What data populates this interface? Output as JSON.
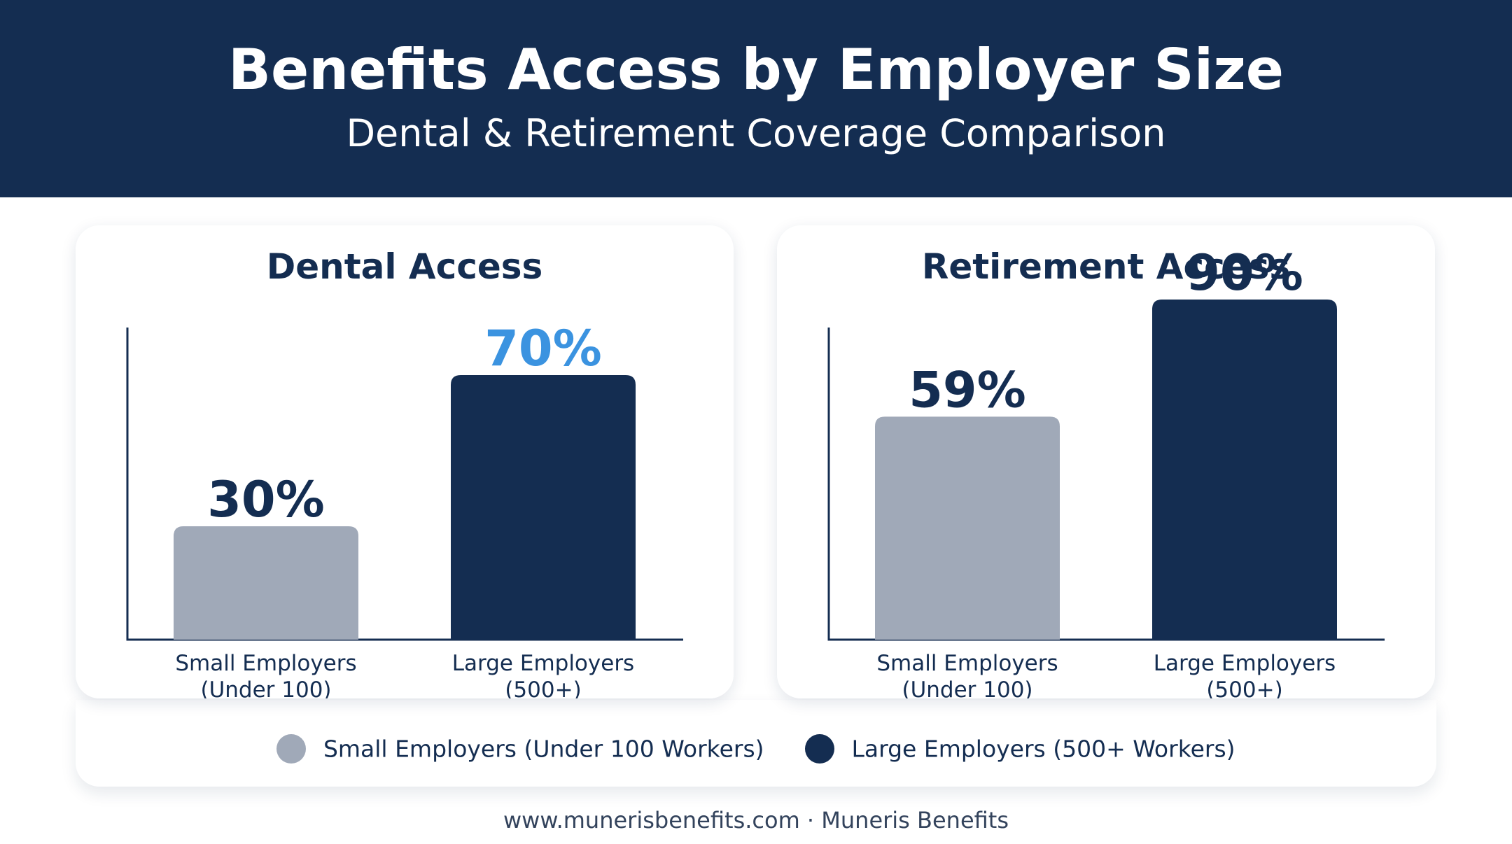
{
  "header": {
    "title": "Benefits Access by Employer Size",
    "subtitle": "Dental & Retirement Coverage Comparison"
  },
  "colors": {
    "header_bg": "#142d51",
    "small": "#a0a9b8",
    "large": "#142d51",
    "highlight_label": "#3b93e0",
    "axis": "#142d51"
  },
  "chart_data": [
    {
      "type": "bar",
      "title": "Dental Access",
      "categories": [
        "Small Employers (Under 100)",
        "Large Employers (500+)"
      ],
      "category_lines": [
        [
          "Small Employers",
          "(Under 100)"
        ],
        [
          "Large Employers",
          "(500+)"
        ]
      ],
      "values": [
        30,
        70
      ],
      "data_labels": [
        "30%",
        "70%"
      ],
      "label_colors": [
        "#142d51",
        "#3b93e0"
      ],
      "bar_colors": [
        "#a0a9b8",
        "#142d51"
      ],
      "ylim": [
        0,
        100
      ],
      "grid": false
    },
    {
      "type": "bar",
      "title": "Retirement Access",
      "categories": [
        "Small Employers (Under 100)",
        "Large Employers (500+)"
      ],
      "category_lines": [
        [
          "Small Employers",
          "(Under 100)"
        ],
        [
          "Large Employers",
          "(500+)"
        ]
      ],
      "values": [
        59,
        90
      ],
      "data_labels": [
        "59%",
        "90%"
      ],
      "label_colors": [
        "#142d51",
        "#142d51"
      ],
      "bar_colors": [
        "#a0a9b8",
        "#142d51"
      ],
      "ylim": [
        0,
        100
      ],
      "grid": false
    }
  ],
  "legend": {
    "placement": "bottom-center",
    "items": [
      {
        "label": "Small Employers (Under 100 Workers)",
        "color": "#a0a9b8"
      },
      {
        "label": "Large Employers (500+ Workers)",
        "color": "#142d51"
      }
    ]
  },
  "footer": {
    "text": "www.munerisbenefits.com · Muneris Benefits"
  }
}
